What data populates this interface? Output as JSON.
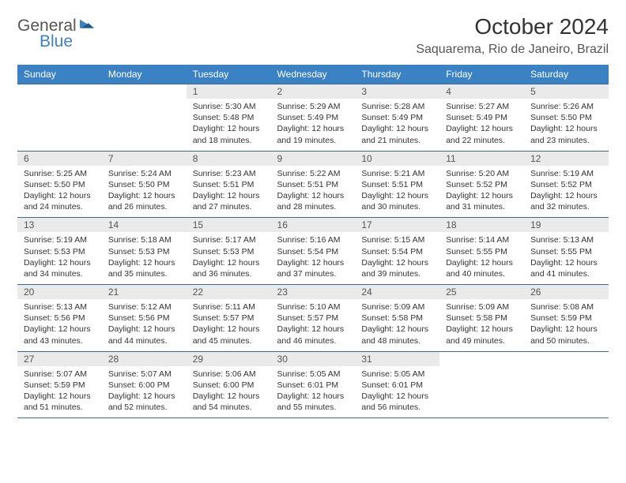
{
  "logo": {
    "line1": "General",
    "line2": "Blue"
  },
  "title": "October 2024",
  "location": "Saquarema, Rio de Janeiro, Brazil",
  "colors": {
    "header_bg": "#3b82c4",
    "header_text": "#ffffff",
    "daynum_bg": "#eaeaea",
    "border": "#3b6a99",
    "text": "#333333"
  },
  "day_names": [
    "Sunday",
    "Monday",
    "Tuesday",
    "Wednesday",
    "Thursday",
    "Friday",
    "Saturday"
  ],
  "weeks": [
    [
      null,
      null,
      {
        "n": "1",
        "sr": "Sunrise: 5:30 AM",
        "ss": "Sunset: 5:48 PM",
        "d1": "Daylight: 12 hours",
        "d2": "and 18 minutes."
      },
      {
        "n": "2",
        "sr": "Sunrise: 5:29 AM",
        "ss": "Sunset: 5:49 PM",
        "d1": "Daylight: 12 hours",
        "d2": "and 19 minutes."
      },
      {
        "n": "3",
        "sr": "Sunrise: 5:28 AM",
        "ss": "Sunset: 5:49 PM",
        "d1": "Daylight: 12 hours",
        "d2": "and 21 minutes."
      },
      {
        "n": "4",
        "sr": "Sunrise: 5:27 AM",
        "ss": "Sunset: 5:49 PM",
        "d1": "Daylight: 12 hours",
        "d2": "and 22 minutes."
      },
      {
        "n": "5",
        "sr": "Sunrise: 5:26 AM",
        "ss": "Sunset: 5:50 PM",
        "d1": "Daylight: 12 hours",
        "d2": "and 23 minutes."
      }
    ],
    [
      {
        "n": "6",
        "sr": "Sunrise: 5:25 AM",
        "ss": "Sunset: 5:50 PM",
        "d1": "Daylight: 12 hours",
        "d2": "and 24 minutes."
      },
      {
        "n": "7",
        "sr": "Sunrise: 5:24 AM",
        "ss": "Sunset: 5:50 PM",
        "d1": "Daylight: 12 hours",
        "d2": "and 26 minutes."
      },
      {
        "n": "8",
        "sr": "Sunrise: 5:23 AM",
        "ss": "Sunset: 5:51 PM",
        "d1": "Daylight: 12 hours",
        "d2": "and 27 minutes."
      },
      {
        "n": "9",
        "sr": "Sunrise: 5:22 AM",
        "ss": "Sunset: 5:51 PM",
        "d1": "Daylight: 12 hours",
        "d2": "and 28 minutes."
      },
      {
        "n": "10",
        "sr": "Sunrise: 5:21 AM",
        "ss": "Sunset: 5:51 PM",
        "d1": "Daylight: 12 hours",
        "d2": "and 30 minutes."
      },
      {
        "n": "11",
        "sr": "Sunrise: 5:20 AM",
        "ss": "Sunset: 5:52 PM",
        "d1": "Daylight: 12 hours",
        "d2": "and 31 minutes."
      },
      {
        "n": "12",
        "sr": "Sunrise: 5:19 AM",
        "ss": "Sunset: 5:52 PM",
        "d1": "Daylight: 12 hours",
        "d2": "and 32 minutes."
      }
    ],
    [
      {
        "n": "13",
        "sr": "Sunrise: 5:19 AM",
        "ss": "Sunset: 5:53 PM",
        "d1": "Daylight: 12 hours",
        "d2": "and 34 minutes."
      },
      {
        "n": "14",
        "sr": "Sunrise: 5:18 AM",
        "ss": "Sunset: 5:53 PM",
        "d1": "Daylight: 12 hours",
        "d2": "and 35 minutes."
      },
      {
        "n": "15",
        "sr": "Sunrise: 5:17 AM",
        "ss": "Sunset: 5:53 PM",
        "d1": "Daylight: 12 hours",
        "d2": "and 36 minutes."
      },
      {
        "n": "16",
        "sr": "Sunrise: 5:16 AM",
        "ss": "Sunset: 5:54 PM",
        "d1": "Daylight: 12 hours",
        "d2": "and 37 minutes."
      },
      {
        "n": "17",
        "sr": "Sunrise: 5:15 AM",
        "ss": "Sunset: 5:54 PM",
        "d1": "Daylight: 12 hours",
        "d2": "and 39 minutes."
      },
      {
        "n": "18",
        "sr": "Sunrise: 5:14 AM",
        "ss": "Sunset: 5:55 PM",
        "d1": "Daylight: 12 hours",
        "d2": "and 40 minutes."
      },
      {
        "n": "19",
        "sr": "Sunrise: 5:13 AM",
        "ss": "Sunset: 5:55 PM",
        "d1": "Daylight: 12 hours",
        "d2": "and 41 minutes."
      }
    ],
    [
      {
        "n": "20",
        "sr": "Sunrise: 5:13 AM",
        "ss": "Sunset: 5:56 PM",
        "d1": "Daylight: 12 hours",
        "d2": "and 43 minutes."
      },
      {
        "n": "21",
        "sr": "Sunrise: 5:12 AM",
        "ss": "Sunset: 5:56 PM",
        "d1": "Daylight: 12 hours",
        "d2": "and 44 minutes."
      },
      {
        "n": "22",
        "sr": "Sunrise: 5:11 AM",
        "ss": "Sunset: 5:57 PM",
        "d1": "Daylight: 12 hours",
        "d2": "and 45 minutes."
      },
      {
        "n": "23",
        "sr": "Sunrise: 5:10 AM",
        "ss": "Sunset: 5:57 PM",
        "d1": "Daylight: 12 hours",
        "d2": "and 46 minutes."
      },
      {
        "n": "24",
        "sr": "Sunrise: 5:09 AM",
        "ss": "Sunset: 5:58 PM",
        "d1": "Daylight: 12 hours",
        "d2": "and 48 minutes."
      },
      {
        "n": "25",
        "sr": "Sunrise: 5:09 AM",
        "ss": "Sunset: 5:58 PM",
        "d1": "Daylight: 12 hours",
        "d2": "and 49 minutes."
      },
      {
        "n": "26",
        "sr": "Sunrise: 5:08 AM",
        "ss": "Sunset: 5:59 PM",
        "d1": "Daylight: 12 hours",
        "d2": "and 50 minutes."
      }
    ],
    [
      {
        "n": "27",
        "sr": "Sunrise: 5:07 AM",
        "ss": "Sunset: 5:59 PM",
        "d1": "Daylight: 12 hours",
        "d2": "and 51 minutes."
      },
      {
        "n": "28",
        "sr": "Sunrise: 5:07 AM",
        "ss": "Sunset: 6:00 PM",
        "d1": "Daylight: 12 hours",
        "d2": "and 52 minutes."
      },
      {
        "n": "29",
        "sr": "Sunrise: 5:06 AM",
        "ss": "Sunset: 6:00 PM",
        "d1": "Daylight: 12 hours",
        "d2": "and 54 minutes."
      },
      {
        "n": "30",
        "sr": "Sunrise: 5:05 AM",
        "ss": "Sunset: 6:01 PM",
        "d1": "Daylight: 12 hours",
        "d2": "and 55 minutes."
      },
      {
        "n": "31",
        "sr": "Sunrise: 5:05 AM",
        "ss": "Sunset: 6:01 PM",
        "d1": "Daylight: 12 hours",
        "d2": "and 56 minutes."
      },
      null,
      null
    ]
  ]
}
